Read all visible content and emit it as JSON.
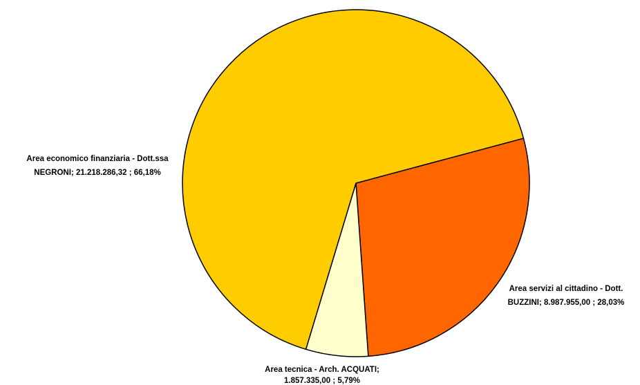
{
  "chart_data": {
    "type": "pie",
    "title": "",
    "slices": [
      {
        "label_line1": "Area servizi al cittadino - Dott.",
        "label_line2": "BUZZINI;  8.987.955,00 ; 28,03%",
        "value": 8987955.0,
        "percent": 28.03,
        "color": "#FF6600"
      },
      {
        "label_line1": "Area tecnica - Arch. ACQUATI;",
        "label_line2": "1.857.335,00 ; 5,79%",
        "value": 1857335.0,
        "percent": 5.79,
        "color": "#FFFFCC"
      },
      {
        "label_line1": "Area economico finanziaria - Dott.ssa",
        "label_line2": "NEGRONI;  21.218.286,32 ; 66,18%",
        "value": 21218286.32,
        "percent": 66.18,
        "color": "#FFCC00"
      }
    ],
    "start_angle_deg": 0,
    "direction": "clockwise",
    "legend": "none"
  }
}
